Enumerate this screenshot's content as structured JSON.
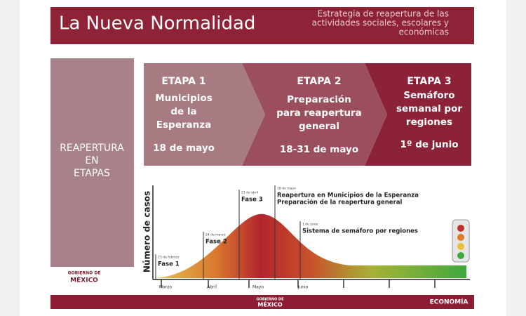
{
  "header": {
    "title": "La Nueva Normalidad",
    "subtitle": [
      "Estrategia de reapertura de las",
      "actividades sociales, escolares y",
      "económicas"
    ]
  },
  "side_label": [
    "REAPERTURA",
    "EN",
    "ETAPAS"
  ],
  "stages": [
    {
      "label": "ETAPA 1",
      "name": [
        "Municipios",
        "de la",
        "Esperanza"
      ],
      "date": "18 de mayo"
    },
    {
      "label": "ETAPA 2",
      "name": [
        "Preparación",
        "para reapertura",
        "general"
      ],
      "date": "18-31 de mayo"
    },
    {
      "label": "ETAPA 3",
      "name": [
        "Semáforo",
        "semanal por",
        "regiones"
      ],
      "date": "1º de junio"
    }
  ],
  "chart": {
    "y_label": "Número de casos",
    "months": [
      "Marzo",
      "Abril",
      "Mayo",
      "Junio"
    ],
    "events": [
      {
        "date": "23 de febrero",
        "text": [
          "Fase 1"
        ]
      },
      {
        "date": "24 de marzo",
        "text": [
          "Fase 2"
        ]
      },
      {
        "date": "21 de abril",
        "text": [
          "Fase 3"
        ]
      },
      {
        "date": "18 de mayo",
        "text": [
          "Reapertura en Municipios de la Esperanza",
          "Preparación de la reapertura general"
        ]
      },
      {
        "date": "1 de junio",
        "text": [
          "Sistema de semáforo por regiones"
        ]
      }
    ]
  },
  "footer": {
    "logo_left": [
      "GOBIERNO DE",
      "MÉXICO"
    ],
    "center": [
      "GOBIERNO DE",
      "MÉXICO"
    ],
    "right": "ECONOMÍA"
  }
}
